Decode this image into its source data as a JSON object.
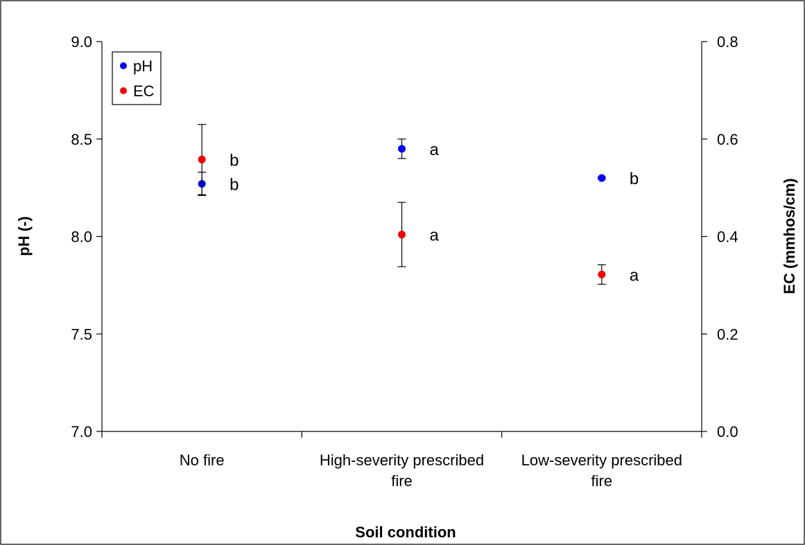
{
  "chart_data": {
    "type": "scatter",
    "title": "",
    "xlabel": "Soil condition",
    "ylabel_left": "pH (-)",
    "ylabel_right": "EC (mmhos/cm)",
    "categories": [
      [
        "No fire"
      ],
      [
        "High-severity prescribed",
        "fire"
      ],
      [
        "Low-severity prescribed",
        "fire"
      ]
    ],
    "y_left": {
      "min": 7.0,
      "max": 9.0,
      "ticks": [
        "7.0",
        "7.5",
        "8.0",
        "8.5",
        "9.0"
      ],
      "tick_values": [
        7.0,
        7.5,
        8.0,
        8.5,
        9.0
      ]
    },
    "y_right": {
      "min": 0.0,
      "max": 0.8,
      "ticks": [
        "0.0",
        "0.2",
        "0.4",
        "0.6",
        "0.8"
      ],
      "tick_values": [
        0.0,
        0.2,
        0.4,
        0.6,
        0.8
      ]
    },
    "legend_position": "top-left",
    "series": [
      {
        "name": "pH",
        "axis": "left",
        "color": "#0000ee",
        "values": [
          8.27,
          8.45,
          8.3
        ],
        "errors": [
          0.06,
          0.05,
          0.005
        ],
        "letters": [
          "b",
          "a",
          "b"
        ]
      },
      {
        "name": "EC",
        "axis": "right",
        "color": "#ee0000",
        "values": [
          0.558,
          0.404,
          0.322
        ],
        "errors": [
          0.072,
          0.066,
          0.02
        ],
        "letters": [
          "b",
          "a",
          "a"
        ]
      }
    ],
    "grid": false
  }
}
